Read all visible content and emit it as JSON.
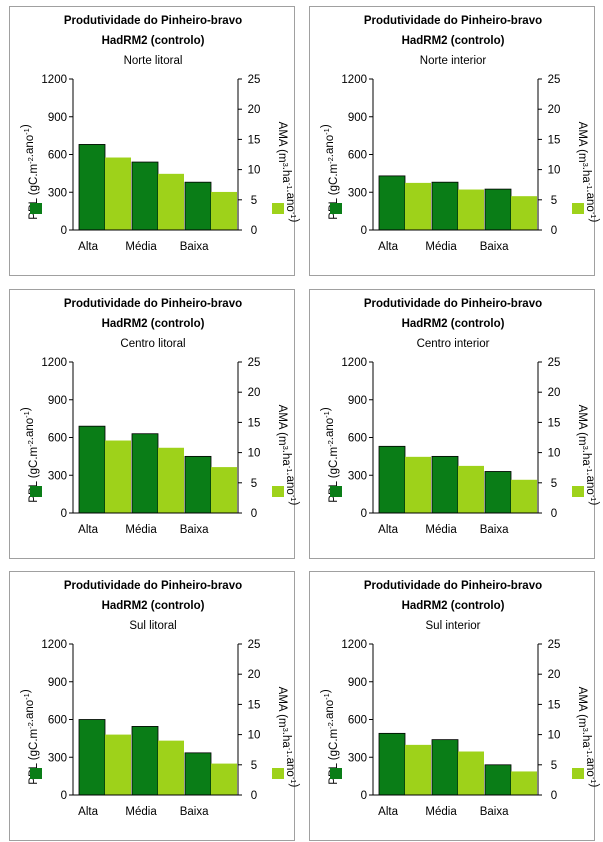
{
  "colors": {
    "ppl": "#0a7d17",
    "ama": "#9ed21a",
    "axis": "#000000"
  },
  "chart_data": [
    {
      "type": "bar",
      "title": "Produtividade do Pinheiro-bravo",
      "subtitle": "HadRM2 (controlo)",
      "region": "Norte litoral",
      "categories": [
        "Alta",
        "Média",
        "Baixa"
      ],
      "ylabel": "PPL",
      "ylabel_unit": "(gC.m⁻².ano⁻¹)",
      "y2label": "AMA",
      "y2label_unit": "(m³.ha⁻¹.ano⁻¹)",
      "ylim": [
        0,
        1200
      ],
      "yticks": [
        "0",
        "300",
        "600",
        "900",
        "1200"
      ],
      "y2lim": [
        0,
        25
      ],
      "y2ticks": [
        "0",
        "5",
        "10",
        "15",
        "20",
        "25"
      ],
      "series": [
        {
          "name": "PPL",
          "axis": "left",
          "values": [
            680,
            540,
            380
          ]
        },
        {
          "name": "AMA",
          "axis": "right",
          "values": [
            12.0,
            9.3,
            6.3
          ]
        }
      ]
    },
    {
      "type": "bar",
      "title": "Produtividade do Pinheiro-bravo",
      "subtitle": "HadRM2 (controlo)",
      "region": "Norte interior",
      "categories": [
        "Alta",
        "Média",
        "Baixa"
      ],
      "ylabel": "PPL",
      "ylabel_unit": "(gC.m⁻².ano⁻¹)",
      "y2label": "AMA",
      "y2label_unit": "(m³.ha⁻¹.ano⁻¹)",
      "ylim": [
        0,
        1200
      ],
      "yticks": [
        "0",
        "300",
        "600",
        "900",
        "1200"
      ],
      "y2lim": [
        0,
        25
      ],
      "y2ticks": [
        "0",
        "5",
        "10",
        "15",
        "20",
        "25"
      ],
      "series": [
        {
          "name": "PPL",
          "axis": "left",
          "values": [
            430,
            380,
            325
          ]
        },
        {
          "name": "AMA",
          "axis": "right",
          "values": [
            7.8,
            6.7,
            5.6
          ]
        }
      ]
    },
    {
      "type": "bar",
      "title": "Produtividade do Pinheiro-bravo",
      "subtitle": "HadRM2 (controlo)",
      "region": "Centro litoral",
      "categories": [
        "Alta",
        "Média",
        "Baixa"
      ],
      "ylabel": "PPL",
      "ylabel_unit": "(gC.m⁻².ano⁻¹)",
      "y2label": "AMA",
      "y2label_unit": "(m³.ha⁻¹.ano⁻¹)",
      "ylim": [
        0,
        1200
      ],
      "yticks": [
        "0",
        "300",
        "600",
        "900",
        "1200"
      ],
      "y2lim": [
        0,
        25
      ],
      "y2ticks": [
        "0",
        "5",
        "10",
        "15",
        "20",
        "25"
      ],
      "series": [
        {
          "name": "PPL",
          "axis": "left",
          "values": [
            690,
            630,
            450
          ]
        },
        {
          "name": "AMA",
          "axis": "right",
          "values": [
            12.0,
            10.8,
            7.6
          ]
        }
      ]
    },
    {
      "type": "bar",
      "title": "Produtividade do Pinheiro-bravo",
      "subtitle": "HadRM2 (controlo)",
      "region": "Centro interior",
      "categories": [
        "Alta",
        "Média",
        "Baixa"
      ],
      "ylabel": "PPL",
      "ylabel_unit": "(gC.m⁻².ano⁻¹)",
      "y2label": "AMA",
      "y2label_unit": "(m³.ha⁻¹.ano⁻¹)",
      "ylim": [
        0,
        1200
      ],
      "yticks": [
        "0",
        "300",
        "600",
        "900",
        "1200"
      ],
      "y2lim": [
        0,
        25
      ],
      "y2ticks": [
        "0",
        "5",
        "10",
        "15",
        "20",
        "25"
      ],
      "series": [
        {
          "name": "PPL",
          "axis": "left",
          "values": [
            530,
            450,
            330
          ]
        },
        {
          "name": "AMA",
          "axis": "right",
          "values": [
            9.3,
            7.8,
            5.5
          ]
        }
      ]
    },
    {
      "type": "bar",
      "title": "Produtividade do Pinheiro-bravo",
      "subtitle": "HadRM2 (controlo)",
      "region": "Sul litoral",
      "categories": [
        "Alta",
        "Média",
        "Baixa"
      ],
      "ylabel": "PPL",
      "ylabel_unit": "(gC.m⁻².ano⁻¹)",
      "y2label": "AMA",
      "y2label_unit": "(m³.ha⁻¹.ano⁻¹)",
      "ylim": [
        0,
        1200
      ],
      "yticks": [
        "0",
        "300",
        "600",
        "900",
        "1200"
      ],
      "y2lim": [
        0,
        25
      ],
      "y2ticks": [
        "0",
        "5",
        "10",
        "15",
        "20",
        "25"
      ],
      "series": [
        {
          "name": "PPL",
          "axis": "left",
          "values": [
            600,
            545,
            335
          ]
        },
        {
          "name": "AMA",
          "axis": "right",
          "values": [
            10.0,
            9.0,
            5.2
          ]
        }
      ]
    },
    {
      "type": "bar",
      "title": "Produtividade do Pinheiro-bravo",
      "subtitle": "HadRM2 (controlo)",
      "region": "Sul interior",
      "categories": [
        "Alta",
        "Média",
        "Baixa"
      ],
      "ylabel": "PPL",
      "ylabel_unit": "(gC.m⁻².ano⁻¹)",
      "y2label": "AMA",
      "y2label_unit": "(m³.ha⁻¹.ano⁻¹)",
      "ylim": [
        0,
        1200
      ],
      "yticks": [
        "0",
        "300",
        "600",
        "900",
        "1200"
      ],
      "y2lim": [
        0,
        25
      ],
      "y2ticks": [
        "0",
        "5",
        "10",
        "15",
        "20",
        "25"
      ],
      "series": [
        {
          "name": "PPL",
          "axis": "left",
          "values": [
            490,
            440,
            240
          ]
        },
        {
          "name": "AMA",
          "axis": "right",
          "values": [
            8.3,
            7.2,
            3.9
          ]
        }
      ]
    }
  ]
}
